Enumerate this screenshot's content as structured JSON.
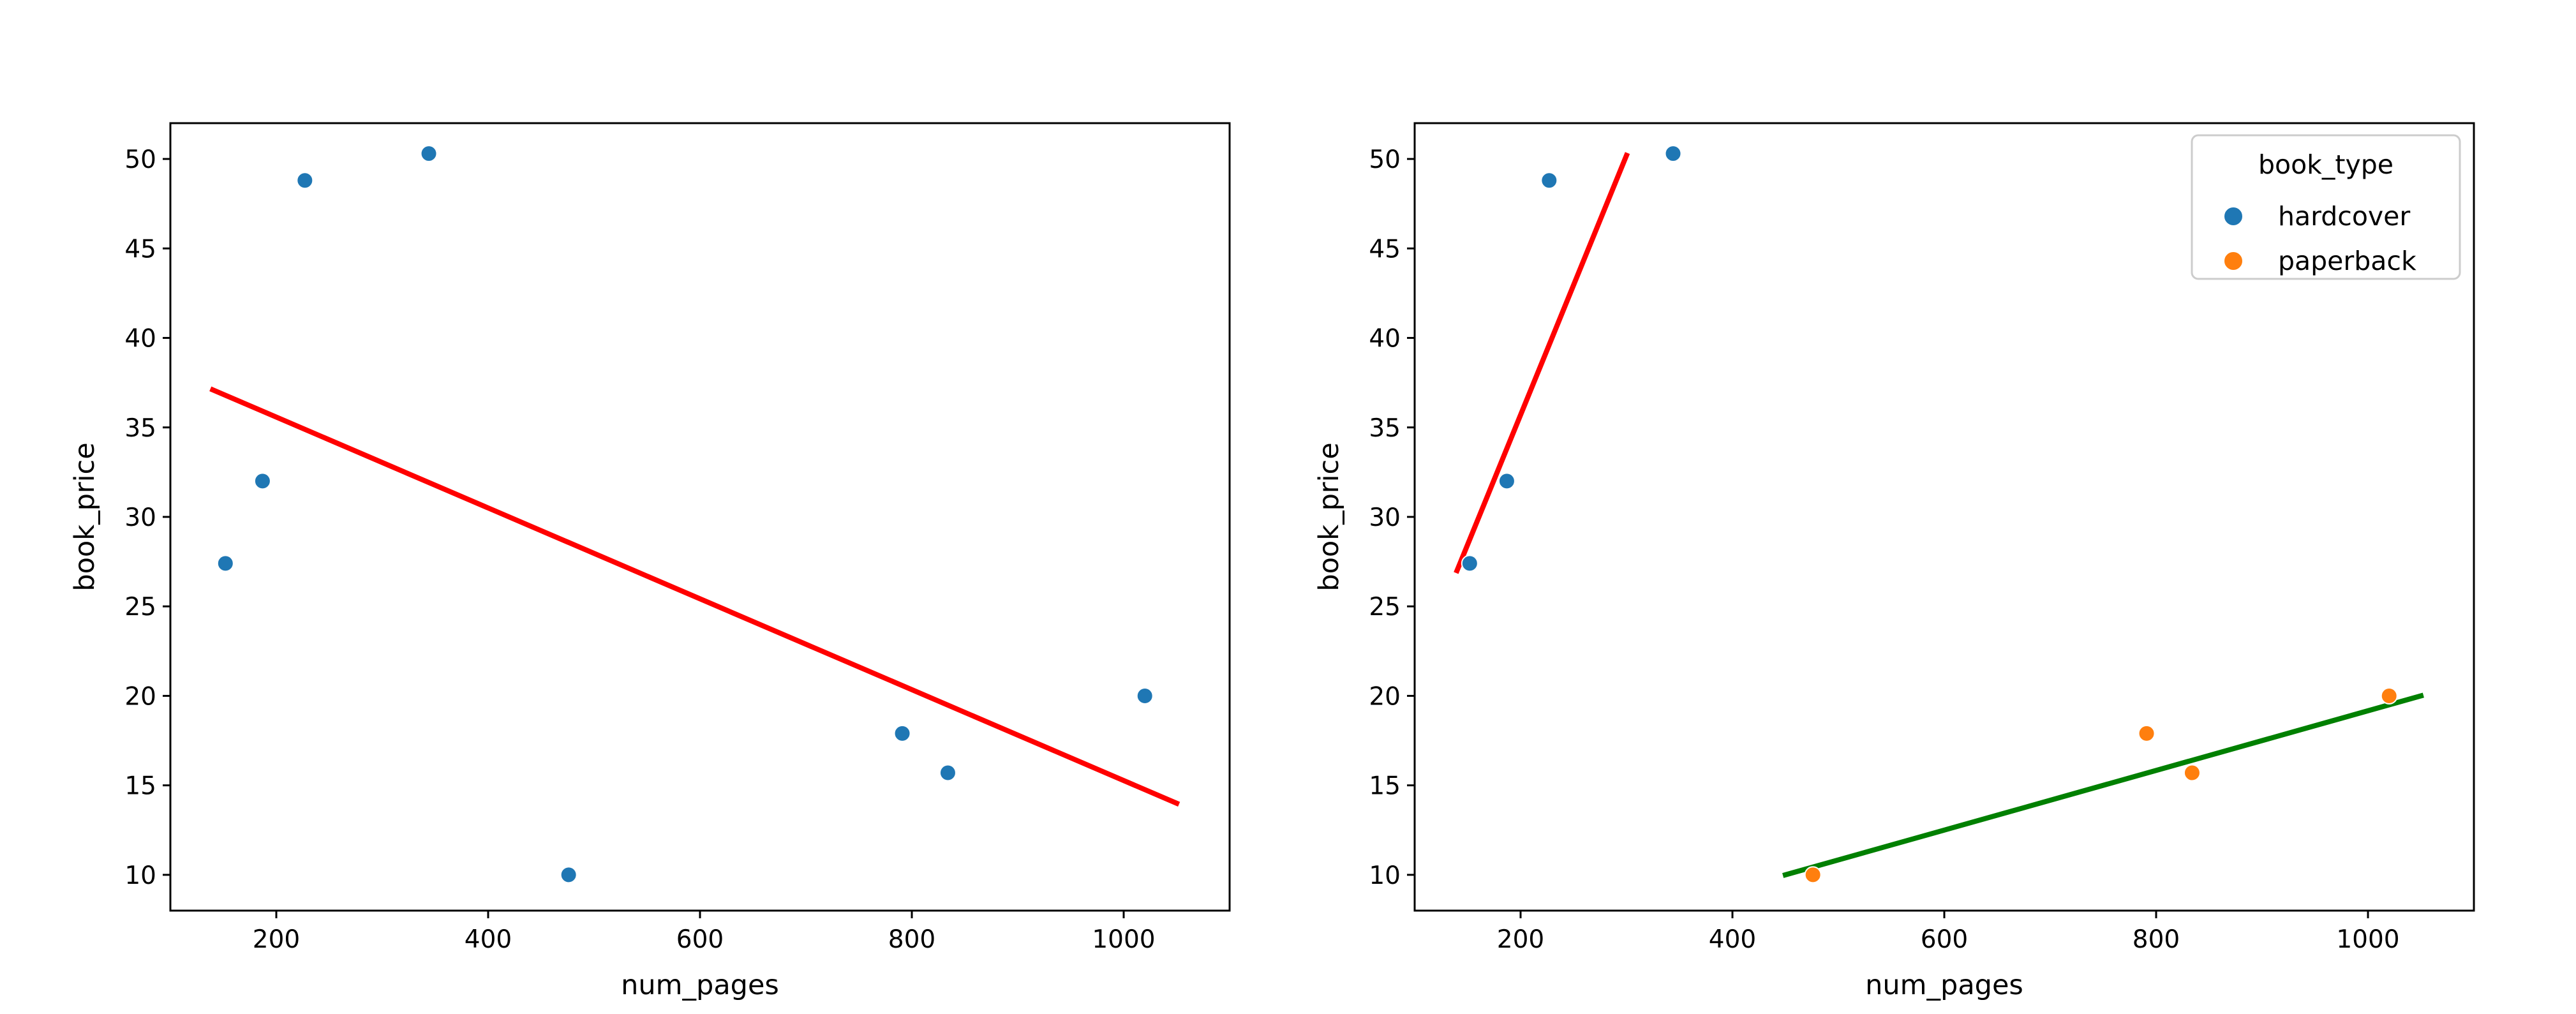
{
  "chart_data": [
    {
      "type": "scatter",
      "title": "",
      "xlabel": "num_pages",
      "ylabel": "book_price",
      "xlim": [
        100,
        1100
      ],
      "ylim": [
        8,
        52
      ],
      "xticks": [
        200,
        400,
        600,
        800,
        1000
      ],
      "yticks": [
        10,
        15,
        20,
        25,
        30,
        35,
        40,
        45,
        50
      ],
      "grid": false,
      "points": [
        {
          "x": 152,
          "y": 27.4,
          "book_type": "hardcover"
        },
        {
          "x": 187,
          "y": 32.0,
          "book_type": "hardcover"
        },
        {
          "x": 227,
          "y": 48.8,
          "book_type": "hardcover"
        },
        {
          "x": 344,
          "y": 50.3,
          "book_type": "hardcover"
        },
        {
          "x": 476,
          "y": 10.0,
          "book_type": "paperback"
        },
        {
          "x": 791,
          "y": 17.9,
          "book_type": "paperback"
        },
        {
          "x": 834,
          "y": 15.7,
          "book_type": "paperback"
        },
        {
          "x": 1020,
          "y": 20.0,
          "book_type": "paperback"
        }
      ],
      "point_color": "#1f77b4",
      "fit_lines": [
        {
          "x": [
            140,
            1050
          ],
          "y": [
            37.1,
            14.0
          ],
          "color": "#ff0000"
        }
      ]
    },
    {
      "type": "scatter",
      "title": "",
      "xlabel": "num_pages",
      "ylabel": "book_price",
      "xlim": [
        100,
        1100
      ],
      "ylim": [
        8,
        52
      ],
      "xticks": [
        200,
        400,
        600,
        800,
        1000
      ],
      "yticks": [
        10,
        15,
        20,
        25,
        30,
        35,
        40,
        45,
        50
      ],
      "grid": false,
      "series": [
        {
          "name": "hardcover",
          "color": "#1f77b4",
          "points": [
            {
              "x": 152,
              "y": 27.4
            },
            {
              "x": 187,
              "y": 32.0
            },
            {
              "x": 227,
              "y": 48.8
            },
            {
              "x": 344,
              "y": 50.3
            }
          ]
        },
        {
          "name": "paperback",
          "color": "#ff7f0e",
          "points": [
            {
              "x": 476,
              "y": 10.0
            },
            {
              "x": 791,
              "y": 17.9
            },
            {
              "x": 834,
              "y": 15.7
            },
            {
              "x": 1020,
              "y": 20.0
            }
          ]
        }
      ],
      "fit_lines": [
        {
          "x": [
            140,
            300
          ],
          "y": [
            27.0,
            50.2
          ],
          "color": "#ff0000"
        },
        {
          "x": [
            450,
            1050
          ],
          "y": [
            10.0,
            20.0
          ],
          "color": "#008000"
        }
      ],
      "legend": {
        "title": "book_type",
        "position": "top-right"
      }
    }
  ]
}
